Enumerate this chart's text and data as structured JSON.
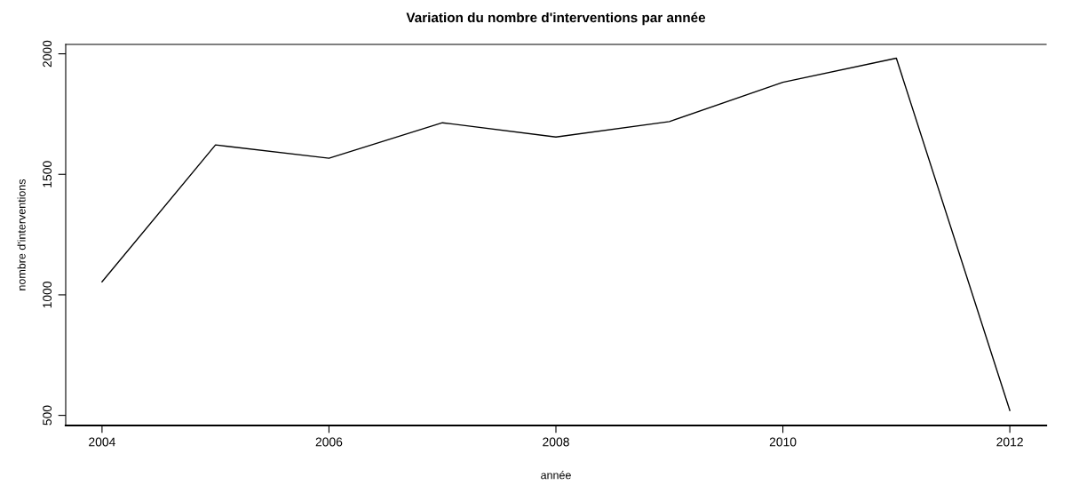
{
  "chart_data": {
    "type": "line",
    "title": "Variation du nombre d'interventions par année",
    "xlabel": "année",
    "ylabel": "nombre d'interventions",
    "x": [
      2004,
      2005,
      2006,
      2007,
      2008,
      2009,
      2010,
      2011,
      2012
    ],
    "series": [
      {
        "color": "#000000",
        "values": [
          1054,
          1622,
          1567,
          1714,
          1655,
          1719,
          1882,
          1982,
          520
        ]
      }
    ],
    "xlim": [
      2003.68,
      2012.32
    ],
    "ylim": [
      458,
      2039
    ],
    "xticks": [
      2004,
      2006,
      2008,
      2010,
      2012
    ],
    "yticks": [
      500,
      1000,
      1500,
      2000
    ],
    "grid": false,
    "legend": false,
    "marker": "none",
    "line_style": "solid"
  }
}
